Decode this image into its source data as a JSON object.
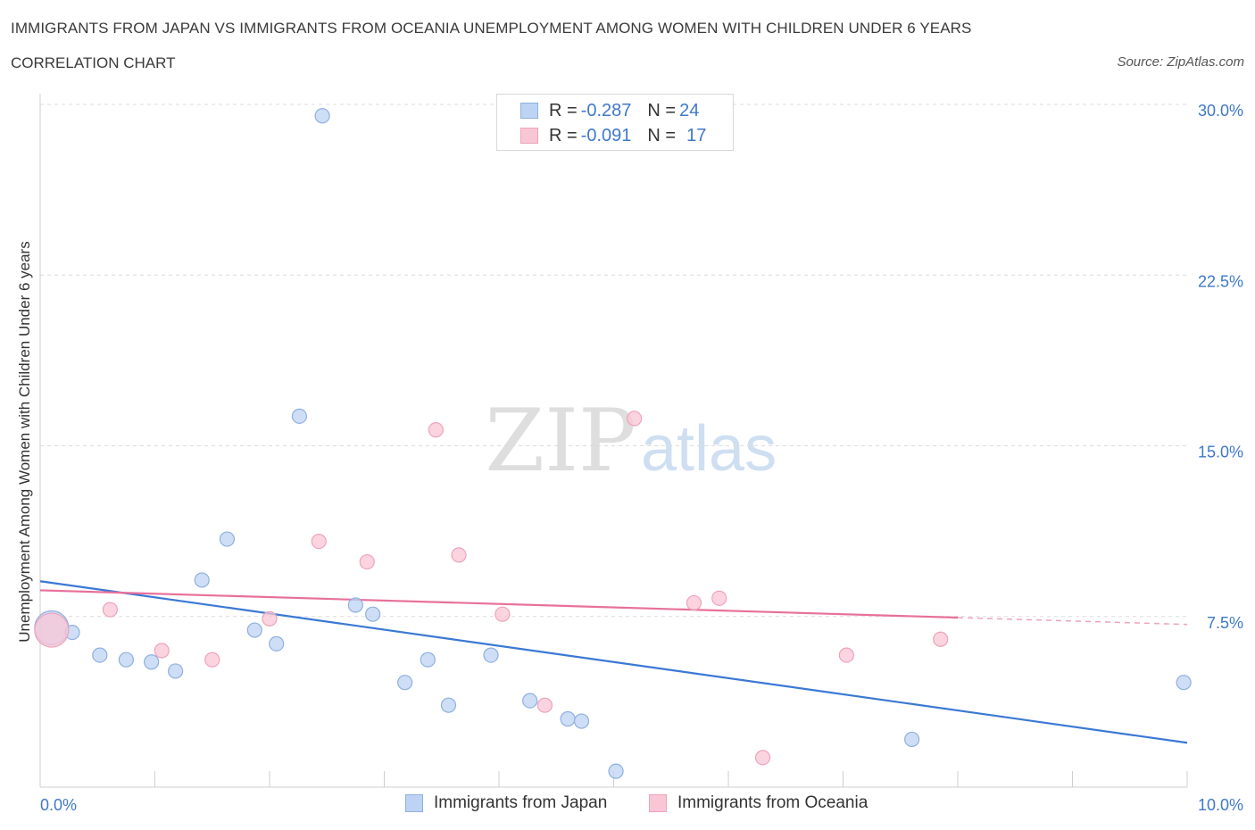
{
  "header": {
    "title": "IMMIGRANTS FROM JAPAN VS IMMIGRANTS FROM OCEANIA UNEMPLOYMENT AMONG WOMEN WITH CHILDREN UNDER 6 YEARS",
    "subtitle": "CORRELATION CHART",
    "source": "Source: ZipAtlas.com"
  },
  "watermark": {
    "zip": "ZIP",
    "atlas": "atlas"
  },
  "legend": {
    "japan": {
      "r_label": "R =",
      "r_value": "-0.287",
      "n_label": "N =",
      "n_value": "24"
    },
    "oceania": {
      "r_label": "R =",
      "r_value": "-0.091",
      "n_label": "N =",
      "n_value": "17"
    }
  },
  "bottom_legend": {
    "japan": "Immigrants from Japan",
    "oceania": "Immigrants from Oceania"
  },
  "colors": {
    "japan_fill": "#bcd3f3",
    "japan_stroke": "#8fb0e0",
    "japan_line": "#3a78d4",
    "oceania_fill": "#f9c6d6",
    "oceania_stroke": "#eea3bb",
    "oceania_line": "#e8709a",
    "tick_label": "#3f78c9",
    "grid": "#dcdcdc"
  },
  "chart_data": {
    "type": "scatter",
    "title": "IMMIGRANTS FROM JAPAN VS IMMIGRANTS FROM OCEANIA UNEMPLOYMENT AMONG WOMEN WITH CHILDREN UNDER 6 YEARS",
    "xlabel": "",
    "ylabel": "Unemployment Among Women with Children Under 6 years",
    "xlim": [
      0,
      10
    ],
    "ylim": [
      0,
      30
    ],
    "x_ticks": [
      0,
      1,
      2,
      3,
      4,
      5,
      6,
      7,
      8,
      9,
      10
    ],
    "x_tick_labels": [
      {
        "value": 0,
        "label": "0.0%"
      },
      {
        "value": 10,
        "label": "10.0%"
      }
    ],
    "y_ticks": [
      {
        "value": 7.5,
        "label": "7.5%"
      },
      {
        "value": 15,
        "label": "15.0%"
      },
      {
        "value": 22.5,
        "label": "22.5%"
      },
      {
        "value": 30,
        "label": "30.0%"
      }
    ],
    "grid": true,
    "legend_position": "top-center",
    "series": [
      {
        "name": "Immigrants from Japan",
        "points": [
          {
            "x": 0.1,
            "y": 7.0,
            "big": true
          },
          {
            "x": 0.28,
            "y": 6.8
          },
          {
            "x": 0.52,
            "y": 5.8
          },
          {
            "x": 0.75,
            "y": 5.6
          },
          {
            "x": 0.97,
            "y": 5.5
          },
          {
            "x": 1.18,
            "y": 5.1
          },
          {
            "x": 1.41,
            "y": 9.1
          },
          {
            "x": 1.63,
            "y": 10.9
          },
          {
            "x": 1.87,
            "y": 6.9
          },
          {
            "x": 2.06,
            "y": 6.3
          },
          {
            "x": 2.26,
            "y": 16.3
          },
          {
            "x": 2.46,
            "y": 29.5
          },
          {
            "x": 2.75,
            "y": 8.0
          },
          {
            "x": 2.9,
            "y": 7.6
          },
          {
            "x": 3.18,
            "y": 4.6
          },
          {
            "x": 3.38,
            "y": 5.6
          },
          {
            "x": 3.56,
            "y": 3.6
          },
          {
            "x": 3.93,
            "y": 5.8
          },
          {
            "x": 4.27,
            "y": 3.8
          },
          {
            "x": 4.6,
            "y": 3.0
          },
          {
            "x": 4.72,
            "y": 2.9
          },
          {
            "x": 5.02,
            "y": 0.7
          },
          {
            "x": 7.6,
            "y": 2.1
          },
          {
            "x": 9.97,
            "y": 4.6
          }
        ],
        "trend": {
          "x1": 0,
          "y1": 9.05,
          "x2": 10,
          "y2": 1.95
        }
      },
      {
        "name": "Immigrants from Oceania",
        "points": [
          {
            "x": 0.1,
            "y": 6.9,
            "big": true
          },
          {
            "x": 0.61,
            "y": 7.8
          },
          {
            "x": 1.06,
            "y": 6.0
          },
          {
            "x": 1.5,
            "y": 5.6
          },
          {
            "x": 2.0,
            "y": 7.4
          },
          {
            "x": 2.43,
            "y": 10.8
          },
          {
            "x": 2.85,
            "y": 9.9
          },
          {
            "x": 3.45,
            "y": 15.7
          },
          {
            "x": 3.65,
            "y": 10.2
          },
          {
            "x": 4.03,
            "y": 7.6
          },
          {
            "x": 4.4,
            "y": 3.6
          },
          {
            "x": 5.18,
            "y": 16.2
          },
          {
            "x": 5.7,
            "y": 8.1
          },
          {
            "x": 5.92,
            "y": 8.3
          },
          {
            "x": 6.3,
            "y": 1.3
          },
          {
            "x": 7.03,
            "y": 5.8
          },
          {
            "x": 7.85,
            "y": 6.5
          }
        ],
        "trend": {
          "x1": 0,
          "y1": 8.65,
          "x2": 8.0,
          "y2": 7.45
        },
        "trend_dashed_extension": {
          "x1": 8.0,
          "y1": 7.45,
          "x2": 10,
          "y2": 7.15
        }
      }
    ]
  }
}
